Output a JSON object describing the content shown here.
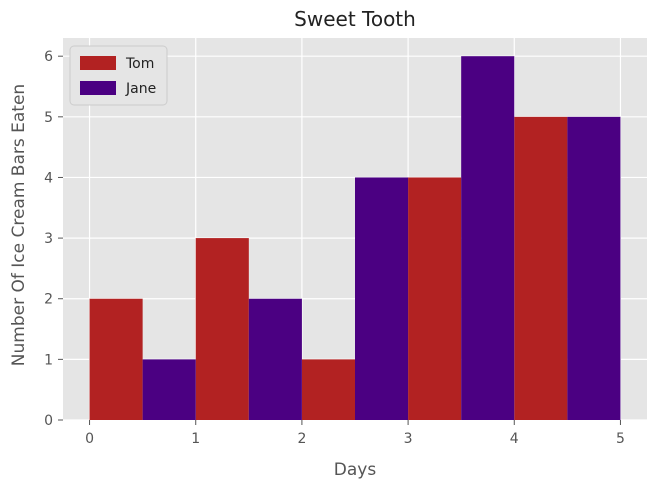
{
  "chart_data": {
    "type": "bar",
    "title": "Sweet Tooth",
    "xlabel": "Days",
    "ylabel": "Number Of Ice Cream Bars Eaten",
    "xlim": [
      -0.25,
      5.25
    ],
    "ylim": [
      0,
      6.3
    ],
    "xticks": [
      "0",
      "1",
      "2",
      "3",
      "4",
      "5"
    ],
    "yticks": [
      "0",
      "1",
      "2",
      "3",
      "4",
      "5",
      "6"
    ],
    "bar_width": 0.5,
    "grid": true,
    "legend_position": "top-left",
    "series": [
      {
        "name": "Tom",
        "color": "#b22222",
        "x": [
          0,
          1,
          2,
          3,
          4
        ],
        "values": [
          2,
          3,
          1,
          4,
          5
        ]
      },
      {
        "name": "Jane",
        "color": "#4b0082",
        "x": [
          0.5,
          1.5,
          2.5,
          3.5,
          4.5
        ],
        "values": [
          1,
          2,
          4,
          6,
          5
        ]
      }
    ]
  }
}
